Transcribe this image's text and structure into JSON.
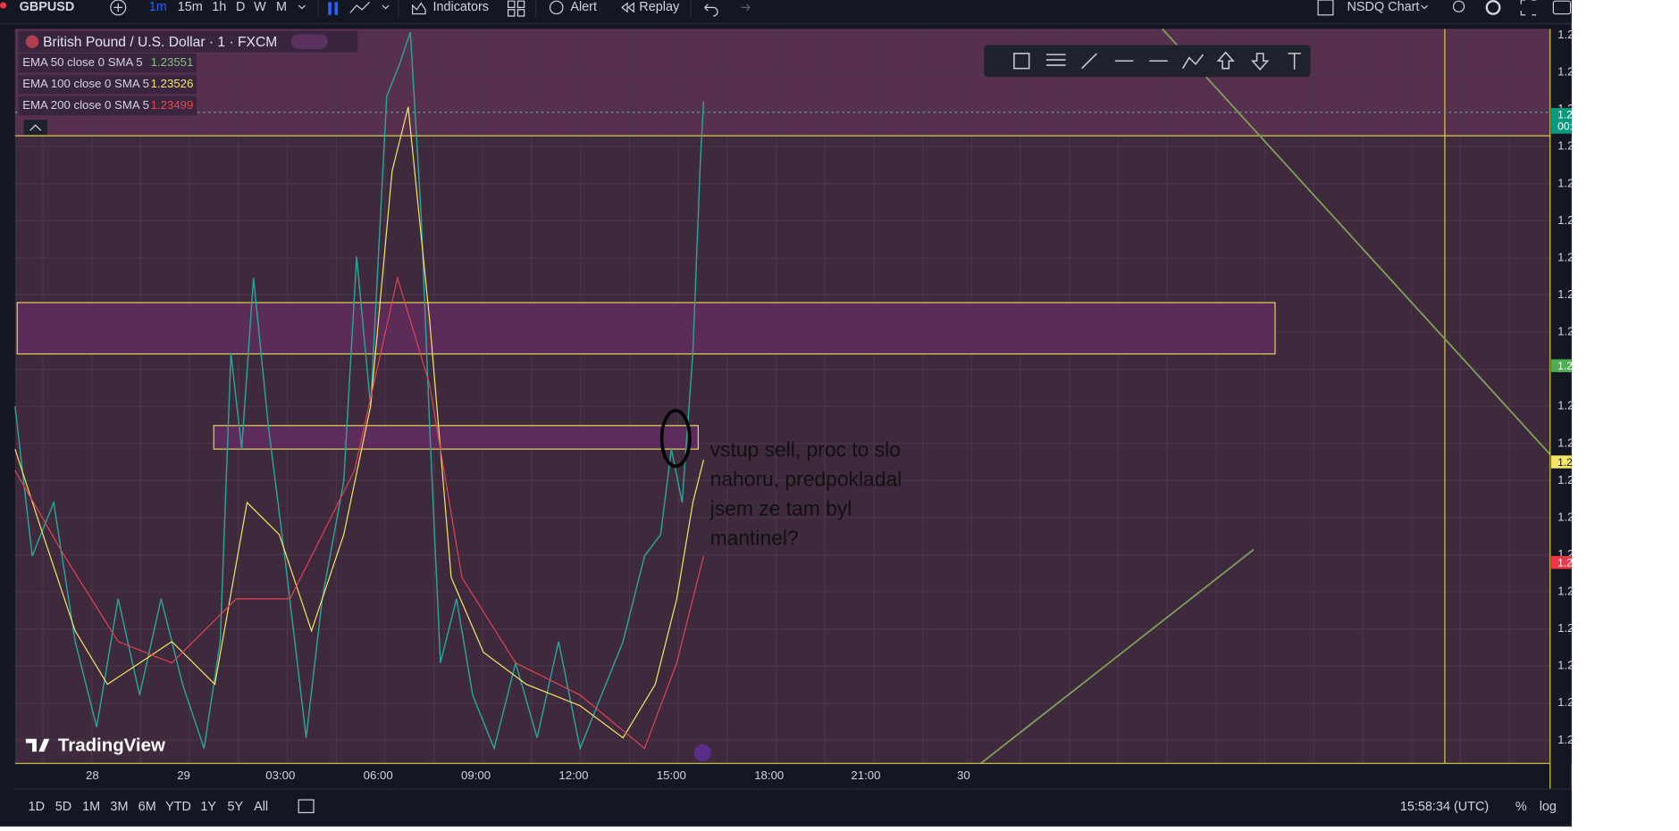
{
  "toolbar": {
    "symbol": "GBPUSD",
    "intervals": [
      "1m",
      "15m",
      "1h",
      "D",
      "W",
      "M"
    ],
    "indicators": "Indicators",
    "alert": "Alert",
    "replay": "Replay",
    "layout": "NSDQ Chart"
  },
  "legend": {
    "title": "British Pound / U.S. Dollar · 1 · FXCM",
    "studies": [
      {
        "name": "EMA 50 close 0 SMA 5",
        "value": "1.23551",
        "color": "#7ec47a"
      },
      {
        "name": "EMA 100 close 0 SMA 5",
        "value": "1.23526",
        "color": "#f5e663"
      },
      {
        "name": "EMA 200 close 0 SMA 5",
        "value": "1.23499",
        "color": "#f0454c"
      }
    ]
  },
  "annotation": {
    "lines": [
      "vstup sell, proc to slo",
      "nahoru, predpokladal",
      "jsem ze tam byl",
      "mantinel?"
    ]
  },
  "watermark": "TradingView",
  "time_axis": [
    "28",
    "29",
    "03:00",
    "06:00",
    "09:00",
    "12:00",
    "15:00",
    "18:00",
    "21:00",
    "30"
  ],
  "price_axis": [
    "1.2",
    "1.2",
    "1.2",
    "1.2",
    "1.2",
    "1.2",
    "1.2",
    "1.2",
    "1.2",
    "1.2",
    "1.2",
    "1.2",
    "1.2",
    "1.2",
    "1.2",
    "1.2",
    "1.2",
    "1.2",
    "1.2",
    "1.2"
  ],
  "price_badges": [
    {
      "text": "1.2",
      "sub": "00:",
      "color": "#089981"
    },
    {
      "text": "1.2",
      "color": "#4caf50"
    },
    {
      "text": "1.2",
      "color": "#f5e663"
    },
    {
      "text": "1.2",
      "color": "#f23645"
    }
  ],
  "bottom_bar": {
    "ranges": [
      "1D",
      "5D",
      "1M",
      "3M",
      "6M",
      "YTD",
      "1Y",
      "5Y",
      "All"
    ],
    "clock": "15:58:34 (UTC)",
    "percent": "%",
    "log": "log"
  }
}
